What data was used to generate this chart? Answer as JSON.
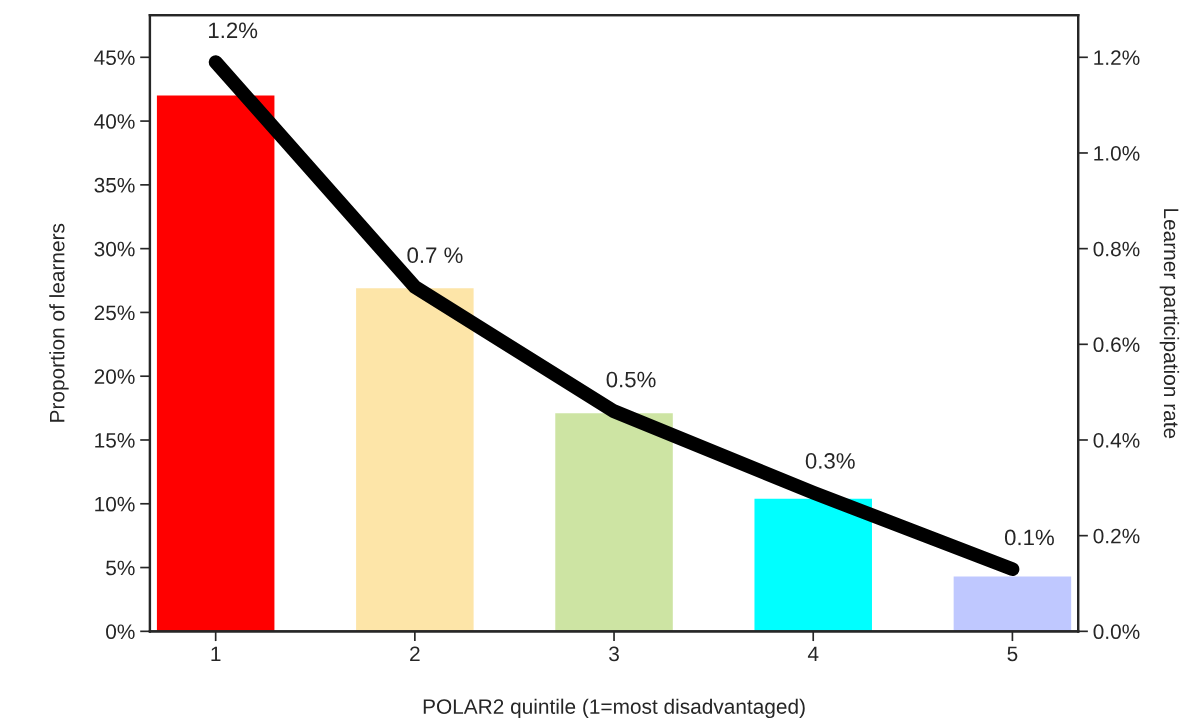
{
  "chart_data": {
    "type": "bar",
    "xlabel": "POLAR2 quintile (1=most disadvantaged)",
    "ylabel": "Proportion of learners",
    "y2label": "Learner participation rate",
    "categories": [
      "1",
      "2",
      "3",
      "4",
      "5"
    ],
    "series": [
      {
        "colors": [
          "#ff0000",
          "#fde5a8",
          "#cde4a3",
          "#00ffff",
          "#bfc8ff"
        ],
        "values": [
          42,
          26.9,
          17.1,
          10.4,
          4.3
        ]
      },
      {
        "type": "line",
        "axis": "y2",
        "color": "#000000",
        "values": [
          1.19,
          0.72,
          0.46,
          0.29,
          0.13
        ],
        "value_labels": [
          "1.2%",
          "0.7 %",
          "0.5%",
          "0.3%",
          "0.1%"
        ]
      }
    ],
    "ylim": [
      0,
      48.3
    ],
    "yticks": [
      {
        "value": 0,
        "label": "0%"
      },
      {
        "value": 5,
        "label": "5%"
      },
      {
        "value": 10,
        "label": "10%"
      },
      {
        "value": 15,
        "label": "15%"
      },
      {
        "value": 20,
        "label": "20%"
      },
      {
        "value": 25,
        "label": "25%"
      },
      {
        "value": 30,
        "label": "30%"
      },
      {
        "value": 35,
        "label": "35%"
      },
      {
        "value": 40,
        "label": "40%"
      },
      {
        "value": 45,
        "label": "45%"
      }
    ],
    "y2lim": [
      0,
      1.288
    ],
    "y2ticks": [
      {
        "value": 0,
        "label": "0.0%"
      },
      {
        "value": 0.2,
        "label": "0.2%"
      },
      {
        "value": 0.4,
        "label": "0.4%"
      },
      {
        "value": 0.6,
        "label": "0.6%"
      },
      {
        "value": 0.8,
        "label": "0.8%"
      },
      {
        "value": 1.0,
        "label": "1.0%"
      },
      {
        "value": 1.2,
        "label": "1.2%"
      }
    ],
    "grid": false,
    "legend": false,
    "line_style": "solid"
  }
}
